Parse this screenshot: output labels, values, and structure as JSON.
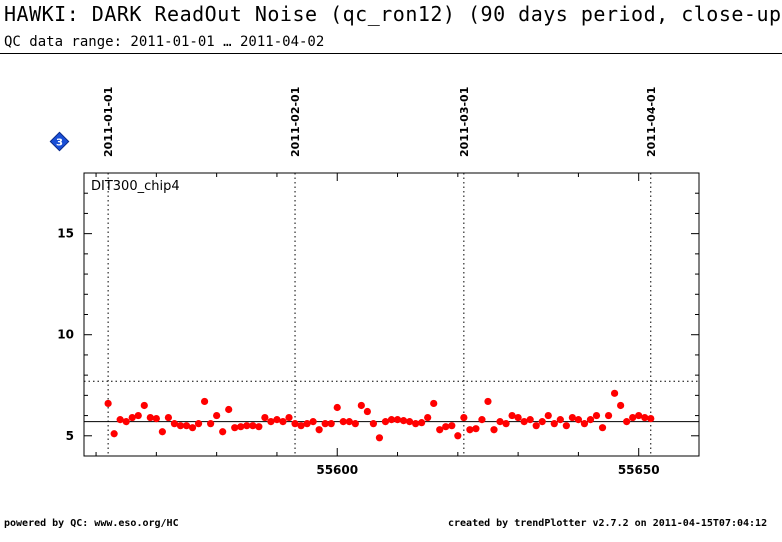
{
  "header": {
    "title": "HAWKI: DARK ReadOut Noise (qc_ron12) (90 days period, close-up",
    "subtitle": "QC data range: 2011-01-01 … 2011-04-02"
  },
  "badge": {
    "text": "3",
    "color": "#1a4fd6",
    "icon": "diamond-icon"
  },
  "footer": {
    "left": "powered by QC: www.eso.org/HC",
    "right": "created by trendPlotter v2.7.2 on 2011-04-15T07:04:12"
  },
  "chart_data": {
    "type": "scatter",
    "panel_label": "DIT300_chip4",
    "xlim": [
      55558,
      55660
    ],
    "ylim": [
      4,
      18
    ],
    "x_ticks": [
      55600,
      55650
    ],
    "y_ticks": [
      5,
      10,
      15
    ],
    "date_markers": [
      {
        "label": "2011-01-01",
        "x": 55562
      },
      {
        "label": "2011-02-01",
        "x": 55593
      },
      {
        "label": "2011-03-01",
        "x": 55621
      },
      {
        "label": "2011-04-01",
        "x": 55652
      }
    ],
    "reference_lines": [
      {
        "style": "solid",
        "y": 5.7
      },
      {
        "style": "dotted",
        "y": 7.7
      }
    ],
    "point_color": "#ff0000",
    "series": [
      {
        "x": [
          55562,
          55563,
          55564,
          55565,
          55566,
          55567,
          55568,
          55569,
          55570,
          55571,
          55572,
          55573,
          55574,
          55575,
          55576,
          55577,
          55578,
          55579,
          55580,
          55581,
          55582,
          55583,
          55584,
          55585,
          55586,
          55587,
          55588,
          55589,
          55590,
          55591,
          55592,
          55593,
          55594,
          55595,
          55596,
          55597,
          55598,
          55599,
          55600,
          55601,
          55602,
          55603,
          55604,
          55605,
          55606,
          55607,
          55608,
          55609,
          55610,
          55611,
          55612,
          55613,
          55614,
          55615,
          55616,
          55617,
          55618,
          55619,
          55620,
          55621,
          55622,
          55623,
          55624,
          55625,
          55626,
          55627,
          55628,
          55629,
          55630,
          55631,
          55632,
          55633,
          55634,
          55635,
          55636,
          55637,
          55638,
          55639,
          55640,
          55641,
          55642,
          55643,
          55644,
          55645,
          55646,
          55647,
          55648,
          55649,
          55650,
          55651,
          55652
        ],
        "y": [
          6.6,
          5.1,
          5.8,
          5.7,
          5.9,
          6.0,
          6.5,
          5.9,
          5.85,
          5.2,
          5.9,
          5.6,
          5.5,
          5.5,
          5.4,
          5.6,
          6.7,
          5.6,
          6.0,
          5.2,
          6.3,
          5.4,
          5.45,
          5.5,
          5.5,
          5.45,
          5.9,
          5.7,
          5.8,
          5.7,
          5.9,
          5.6,
          5.5,
          5.6,
          5.7,
          5.3,
          5.6,
          5.6,
          6.4,
          5.7,
          5.7,
          5.6,
          6.5,
          6.2,
          5.6,
          4.9,
          5.7,
          5.8,
          5.8,
          5.75,
          5.7,
          5.6,
          5.65,
          5.9,
          6.6,
          5.3,
          5.45,
          5.5,
          5.0,
          5.9,
          5.3,
          5.35,
          5.8,
          6.7,
          5.3,
          5.7,
          5.6,
          6.0,
          5.9,
          5.7,
          5.8,
          5.5,
          5.7,
          6.0,
          5.6,
          5.8,
          5.5,
          5.9,
          5.8,
          5.6,
          5.8,
          6.0,
          5.4,
          6.0,
          7.1,
          6.5,
          5.7,
          5.9,
          6.0,
          5.9,
          5.85
        ]
      }
    ]
  }
}
